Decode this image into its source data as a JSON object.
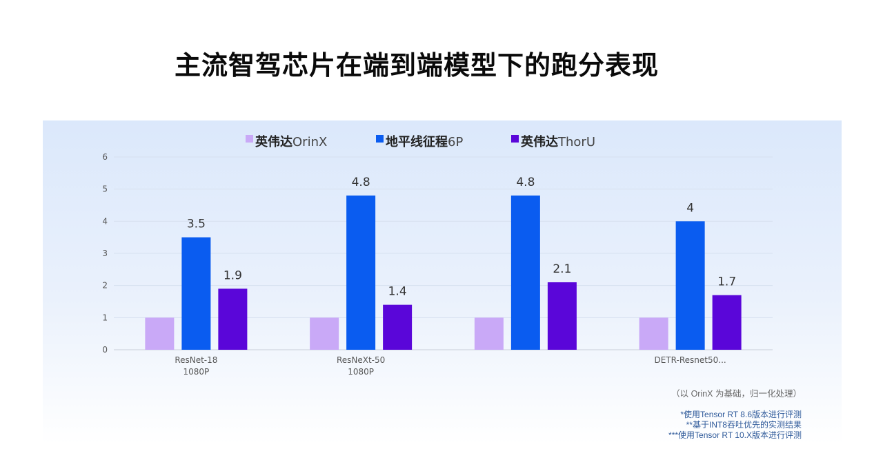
{
  "title": "主流智驾芯片在端到端模型下的跑分表现",
  "chart_data": {
    "type": "bar",
    "categories": [
      [
        "ResNet-18",
        "1080P"
      ],
      [
        "ResNeXt-50",
        "1080P"
      ],
      [
        "",
        ""
      ],
      [
        "DETR-Resnet50...",
        ""
      ]
    ],
    "series": [
      {
        "name": "英伟达OrinX",
        "color": "#c9a9f7",
        "values": [
          1,
          1,
          1,
          1
        ],
        "labels": [
          "",
          "",
          "",
          ""
        ]
      },
      {
        "name": "地平线征程6P",
        "color": "#0a5cf0",
        "values": [
          3.5,
          4.8,
          4.8,
          4
        ],
        "labels": [
          "3.5",
          "4.8",
          "4.8",
          "4"
        ]
      },
      {
        "name": "英伟达ThorU",
        "color": "#5a06d9",
        "values": [
          1.9,
          1.4,
          2.1,
          1.7
        ],
        "labels": [
          "1.9",
          "1.4",
          "2.1",
          "1.7"
        ]
      }
    ],
    "ylim": [
      0,
      6
    ],
    "yticks": [
      0,
      1,
      2,
      3,
      4,
      5,
      6
    ],
    "grid": true,
    "legend_position": "top-center"
  },
  "notes": {
    "basis": "（以 OrinX 为基础，归一化处理）",
    "footnotes": [
      "*使用Tensor RT 8.6版本进行评测",
      "**基于INT8吞吐优先的实测结果",
      "***使用Tensor RT 10.X版本进行评测"
    ]
  }
}
